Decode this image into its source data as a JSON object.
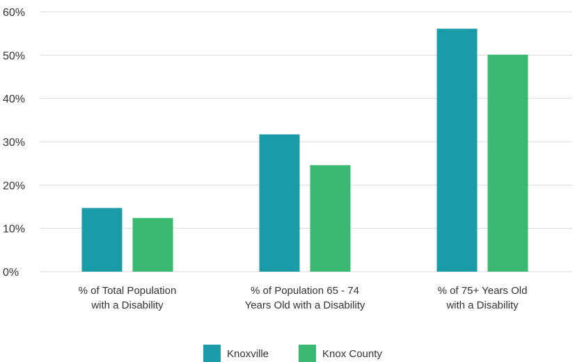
{
  "chart_data": {
    "type": "bar",
    "categories": [
      [
        "% of Total Population",
        "with a Disability"
      ],
      [
        "% of Population 65 - 74",
        "Years Old with a Disability"
      ],
      [
        "% of 75+ Years Old",
        "with a Disability"
      ]
    ],
    "series": [
      {
        "name": "Knoxville",
        "color": "#1a9ba8",
        "values": [
          14.7,
          31.7,
          56.1
        ]
      },
      {
        "name": "Knox County",
        "color": "#3bb872",
        "values": [
          12.4,
          24.6,
          50.1
        ]
      }
    ],
    "yticks": [
      "0%",
      "10%",
      "20%",
      "30%",
      "40%",
      "50%",
      "60%"
    ],
    "ylim": [
      0,
      60
    ],
    "grid": true,
    "legend_position": "bottom-center"
  }
}
